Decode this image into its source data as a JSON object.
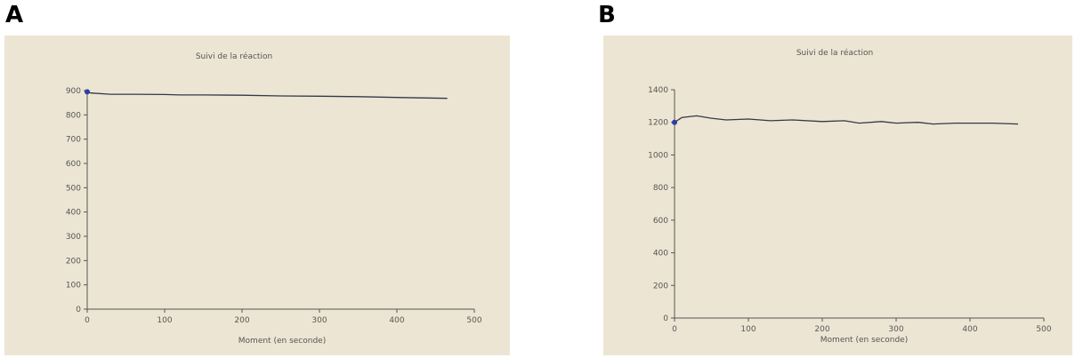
{
  "panels": [
    {
      "letter": "A"
    },
    {
      "letter": "B"
    }
  ],
  "colors": {
    "chart_background": "#ede5d3",
    "line": "#2f3a48",
    "marker": "#2b3fa0",
    "axis": "#555555"
  },
  "chart_data": [
    {
      "type": "line",
      "title": "Suivi de la réaction",
      "xlabel": "Moment (en seconde)",
      "ylabel": "",
      "xlim": [
        0,
        500
      ],
      "ylim": [
        0,
        900
      ],
      "xticks": [
        0,
        100,
        200,
        300,
        400,
        500
      ],
      "yticks": [
        0,
        100,
        200,
        300,
        400,
        500,
        600,
        700,
        800,
        900
      ],
      "grid": false,
      "legend": "none",
      "series": [
        {
          "x": [
            0,
            5,
            30,
            60,
            100,
            120,
            150,
            200,
            250,
            300,
            350,
            400,
            430,
            465
          ],
          "y": [
            895,
            890,
            885,
            885,
            884,
            882,
            882,
            881,
            878,
            877,
            875,
            872,
            870,
            868
          ]
        }
      ],
      "marker_point": {
        "x": 0,
        "y": 895
      }
    },
    {
      "type": "line",
      "title": "Suivi de la réaction",
      "xlabel": "Moment (en seconde)",
      "ylabel": "",
      "xlim": [
        0,
        500
      ],
      "ylim": [
        0,
        1400
      ],
      "xticks": [
        0,
        100,
        200,
        300,
        400,
        500
      ],
      "yticks": [
        0,
        200,
        400,
        600,
        800,
        1000,
        1200,
        1400
      ],
      "grid": false,
      "legend": "none",
      "series": [
        {
          "x": [
            0,
            10,
            30,
            50,
            70,
            100,
            130,
            160,
            200,
            230,
            250,
            280,
            300,
            330,
            350,
            380,
            400,
            430,
            465
          ],
          "y": [
            1200,
            1230,
            1240,
            1225,
            1215,
            1220,
            1210,
            1215,
            1205,
            1210,
            1195,
            1205,
            1195,
            1200,
            1190,
            1195,
            1195,
            1195,
            1190
          ]
        }
      ],
      "marker_point": {
        "x": 0,
        "y": 1200
      }
    }
  ]
}
